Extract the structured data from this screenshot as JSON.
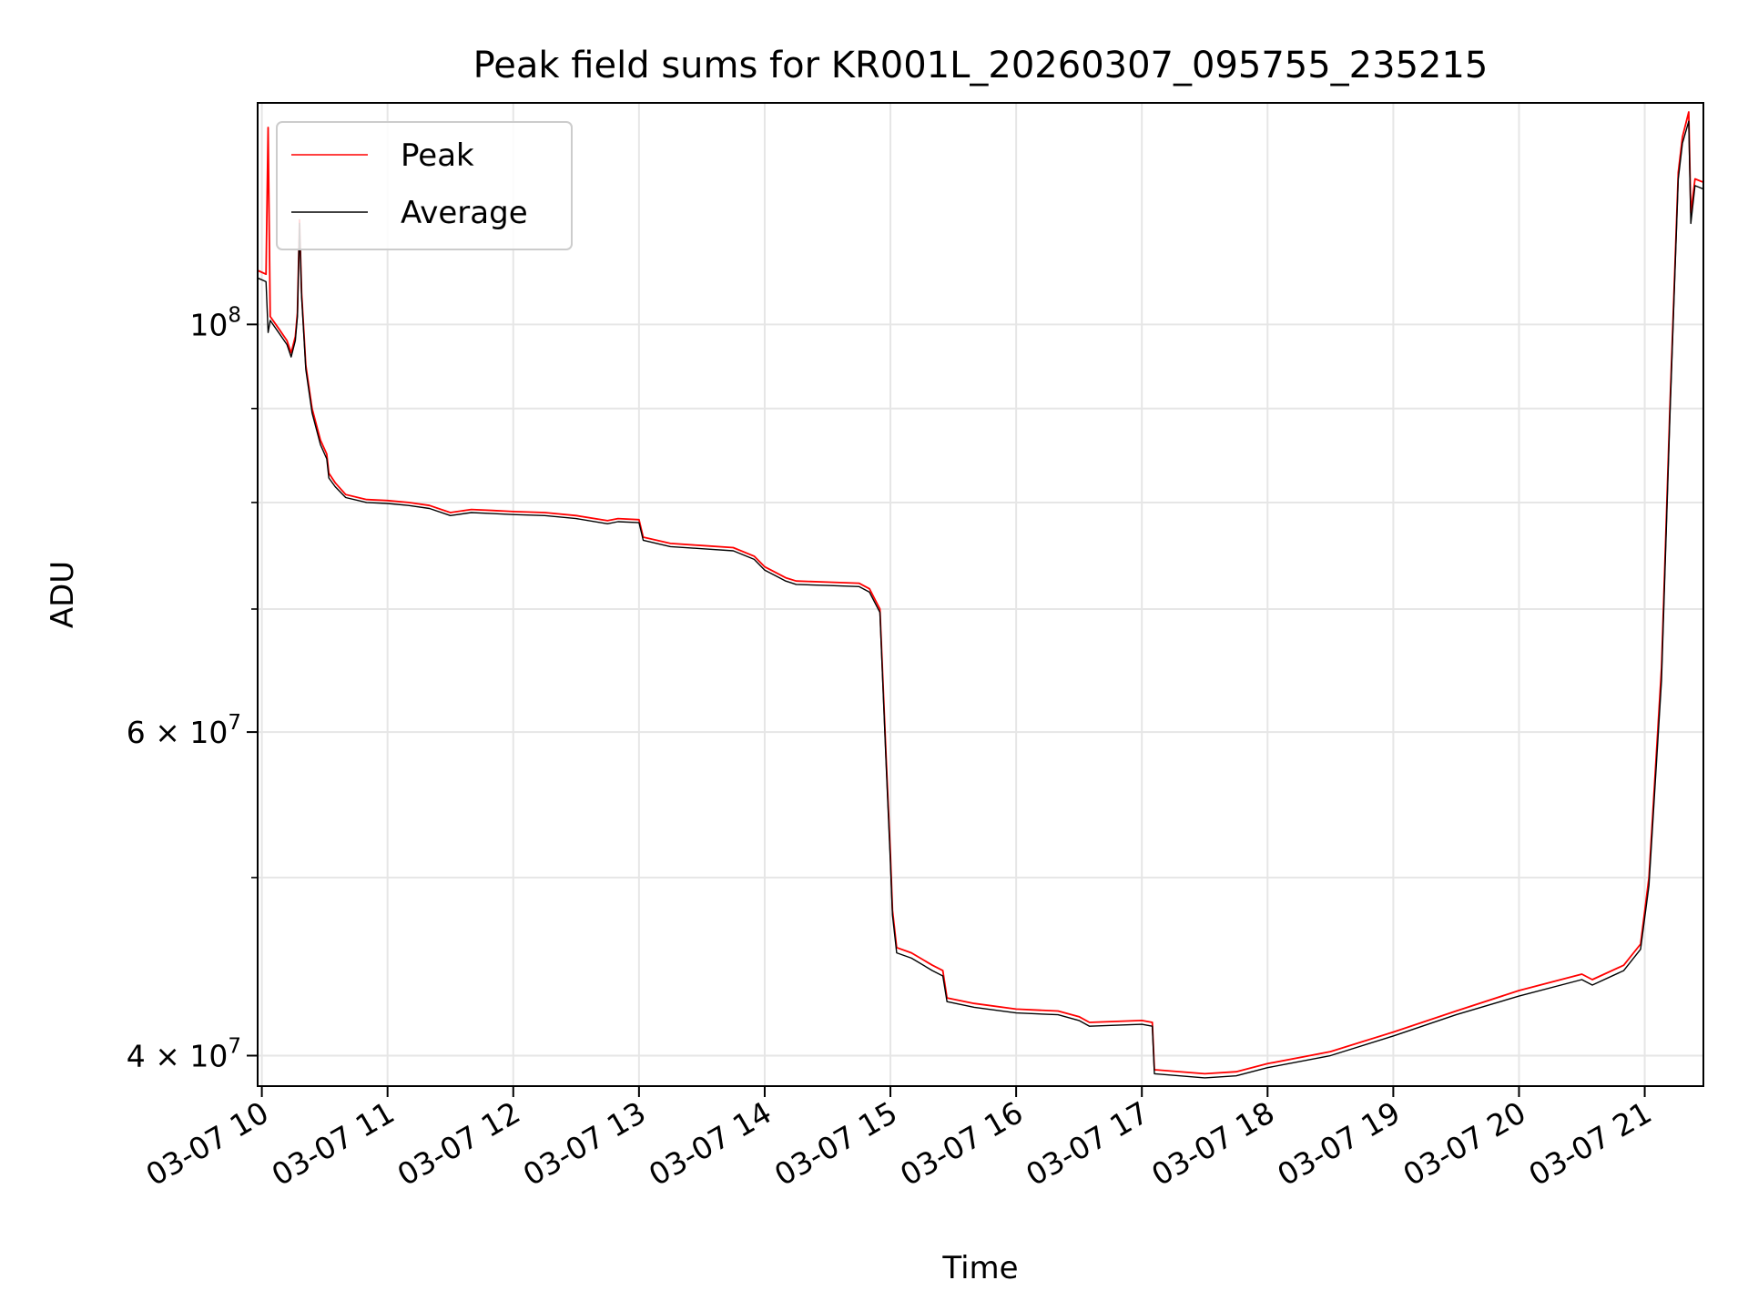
{
  "chart_data": {
    "type": "line",
    "title": "Peak field sums for KR001L_20260307_095755_235215",
    "xlabel": "Time",
    "ylabel": "ADU",
    "y_scale": "log",
    "ylim": [
      38500000,
      132000000
    ],
    "xlim": [
      "2026-03-07 09:58",
      "2026-03-07 21:28"
    ],
    "grid": true,
    "legend_position": "top-left",
    "x_ticks": [
      {
        "t": "2026-03-07 10:00",
        "label": "03-07 10"
      },
      {
        "t": "2026-03-07 11:00",
        "label": "03-07 11"
      },
      {
        "t": "2026-03-07 12:00",
        "label": "03-07 12"
      },
      {
        "t": "2026-03-07 13:00",
        "label": "03-07 13"
      },
      {
        "t": "2026-03-07 14:00",
        "label": "03-07 14"
      },
      {
        "t": "2026-03-07 15:00",
        "label": "03-07 15"
      },
      {
        "t": "2026-03-07 16:00",
        "label": "03-07 16"
      },
      {
        "t": "2026-03-07 17:00",
        "label": "03-07 17"
      },
      {
        "t": "2026-03-07 18:00",
        "label": "03-07 18"
      },
      {
        "t": "2026-03-07 19:00",
        "label": "03-07 19"
      },
      {
        "t": "2026-03-07 20:00",
        "label": "03-07 20"
      },
      {
        "t": "2026-03-07 21:00",
        "label": "03-07 21"
      }
    ],
    "y_major_ticks": [
      {
        "value": 40000000,
        "base": "4 × 10",
        "exp": "7"
      },
      {
        "value": 60000000,
        "base": "6 × 10",
        "exp": "7"
      },
      {
        "value": 100000000,
        "base": "10",
        "exp": "8"
      }
    ],
    "y_minor_ticks": [
      50000000,
      70000000,
      80000000,
      90000000
    ],
    "series": [
      {
        "name": "Peak",
        "color": "#ff0000",
        "points": [
          [
            "2026-03-07 09:58",
            107000000
          ],
          [
            "2026-03-07 10:02",
            106500000
          ],
          [
            "2026-03-07 10:03",
            128000000
          ],
          [
            "2026-03-07 10:04",
            101000000
          ],
          [
            "2026-03-07 10:08",
            99500000
          ],
          [
            "2026-03-07 10:12",
            98000000
          ],
          [
            "2026-03-07 10:14",
            96500000
          ],
          [
            "2026-03-07 10:16",
            98500000
          ],
          [
            "2026-03-07 10:17",
            101500000
          ],
          [
            "2026-03-07 10:18",
            114000000
          ],
          [
            "2026-03-07 10:19",
            104000000
          ],
          [
            "2026-03-07 10:21",
            95000000
          ],
          [
            "2026-03-07 10:24",
            90000000
          ],
          [
            "2026-03-07 10:28",
            86500000
          ],
          [
            "2026-03-07 10:31",
            85000000
          ],
          [
            "2026-03-07 10:32",
            83000000
          ],
          [
            "2026-03-07 10:35",
            82000000
          ],
          [
            "2026-03-07 10:40",
            80800000
          ],
          [
            "2026-03-07 10:50",
            80300000
          ],
          [
            "2026-03-07 11:00",
            80200000
          ],
          [
            "2026-03-07 11:10",
            80000000
          ],
          [
            "2026-03-07 11:20",
            79700000
          ],
          [
            "2026-03-07 11:30",
            79000000
          ],
          [
            "2026-03-07 11:40",
            79300000
          ],
          [
            "2026-03-07 11:50",
            79200000
          ],
          [
            "2026-03-07 12:00",
            79100000
          ],
          [
            "2026-03-07 12:15",
            79000000
          ],
          [
            "2026-03-07 12:30",
            78700000
          ],
          [
            "2026-03-07 12:45",
            78200000
          ],
          [
            "2026-03-07 12:50",
            78400000
          ],
          [
            "2026-03-07 13:00",
            78300000
          ],
          [
            "2026-03-07 13:02",
            76600000
          ],
          [
            "2026-03-07 13:15",
            76000000
          ],
          [
            "2026-03-07 13:30",
            75800000
          ],
          [
            "2026-03-07 13:45",
            75600000
          ],
          [
            "2026-03-07 13:55",
            74800000
          ],
          [
            "2026-03-07 14:00",
            73800000
          ],
          [
            "2026-03-07 14:10",
            72800000
          ],
          [
            "2026-03-07 14:15",
            72500000
          ],
          [
            "2026-03-07 14:30",
            72400000
          ],
          [
            "2026-03-07 14:45",
            72300000
          ],
          [
            "2026-03-07 14:50",
            71800000
          ],
          [
            "2026-03-07 14:55",
            70000000
          ],
          [
            "2026-03-07 14:58",
            58000000
          ],
          [
            "2026-03-07 15:00",
            51500000
          ],
          [
            "2026-03-07 15:01",
            48000000
          ],
          [
            "2026-03-07 15:03",
            45800000
          ],
          [
            "2026-03-07 15:10",
            45500000
          ],
          [
            "2026-03-07 15:20",
            44800000
          ],
          [
            "2026-03-07 15:25",
            44500000
          ],
          [
            "2026-03-07 15:27",
            43000000
          ],
          [
            "2026-03-07 15:40",
            42700000
          ],
          [
            "2026-03-07 16:00",
            42400000
          ],
          [
            "2026-03-07 16:20",
            42300000
          ],
          [
            "2026-03-07 16:30",
            42000000
          ],
          [
            "2026-03-07 16:35",
            41700000
          ],
          [
            "2026-03-07 17:00",
            41800000
          ],
          [
            "2026-03-07 17:05",
            41700000
          ],
          [
            "2026-03-07 17:06",
            39300000
          ],
          [
            "2026-03-07 17:30",
            39100000
          ],
          [
            "2026-03-07 17:45",
            39200000
          ],
          [
            "2026-03-07 18:00",
            39600000
          ],
          [
            "2026-03-07 18:30",
            40200000
          ],
          [
            "2026-03-07 19:00",
            41200000
          ],
          [
            "2026-03-07 19:30",
            42300000
          ],
          [
            "2026-03-07 20:00",
            43400000
          ],
          [
            "2026-03-07 20:30",
            44300000
          ],
          [
            "2026-03-07 20:35",
            44000000
          ],
          [
            "2026-03-07 20:50",
            44800000
          ],
          [
            "2026-03-07 20:58",
            46000000
          ],
          [
            "2026-03-07 21:02",
            50000000
          ],
          [
            "2026-03-07 21:08",
            65000000
          ],
          [
            "2026-03-07 21:12",
            90000000
          ],
          [
            "2026-03-07 21:16",
            121000000
          ],
          [
            "2026-03-07 21:18",
            126500000
          ],
          [
            "2026-03-07 21:21",
            130500000
          ],
          [
            "2026-03-07 21:22",
            115000000
          ],
          [
            "2026-03-07 21:24",
            120000000
          ],
          [
            "2026-03-07 21:28",
            119500000
          ]
        ]
      },
      {
        "name": "Average",
        "color": "#000000",
        "points": [
          [
            "2026-03-07 09:58",
            106000000
          ],
          [
            "2026-03-07 10:02",
            105500000
          ],
          [
            "2026-03-07 10:03",
            99000000
          ],
          [
            "2026-03-07 10:04",
            100500000
          ],
          [
            "2026-03-07 10:08",
            99000000
          ],
          [
            "2026-03-07 10:12",
            97500000
          ],
          [
            "2026-03-07 10:14",
            96000000
          ],
          [
            "2026-03-07 10:16",
            98000000
          ],
          [
            "2026-03-07 10:17",
            101000000
          ],
          [
            "2026-03-07 10:18",
            113500000
          ],
          [
            "2026-03-07 10:19",
            103500000
          ],
          [
            "2026-03-07 10:21",
            94500000
          ],
          [
            "2026-03-07 10:24",
            89500000
          ],
          [
            "2026-03-07 10:28",
            86000000
          ],
          [
            "2026-03-07 10:31",
            84500000
          ],
          [
            "2026-03-07 10:32",
            82500000
          ],
          [
            "2026-03-07 10:35",
            81600000
          ],
          [
            "2026-03-07 10:40",
            80500000
          ],
          [
            "2026-03-07 10:50",
            80000000
          ],
          [
            "2026-03-07 11:00",
            79900000
          ],
          [
            "2026-03-07 11:10",
            79700000
          ],
          [
            "2026-03-07 11:20",
            79400000
          ],
          [
            "2026-03-07 11:30",
            78700000
          ],
          [
            "2026-03-07 11:40",
            79000000
          ],
          [
            "2026-03-07 11:50",
            78900000
          ],
          [
            "2026-03-07 12:00",
            78800000
          ],
          [
            "2026-03-07 12:15",
            78700000
          ],
          [
            "2026-03-07 12:30",
            78400000
          ],
          [
            "2026-03-07 12:45",
            77900000
          ],
          [
            "2026-03-07 12:50",
            78100000
          ],
          [
            "2026-03-07 13:00",
            78000000
          ],
          [
            "2026-03-07 13:02",
            76300000
          ],
          [
            "2026-03-07 13:15",
            75700000
          ],
          [
            "2026-03-07 13:30",
            75500000
          ],
          [
            "2026-03-07 13:45",
            75300000
          ],
          [
            "2026-03-07 13:55",
            74500000
          ],
          [
            "2026-03-07 14:00",
            73500000
          ],
          [
            "2026-03-07 14:10",
            72500000
          ],
          [
            "2026-03-07 14:15",
            72200000
          ],
          [
            "2026-03-07 14:30",
            72100000
          ],
          [
            "2026-03-07 14:45",
            72000000
          ],
          [
            "2026-03-07 14:50",
            71500000
          ],
          [
            "2026-03-07 14:55",
            69700000
          ],
          [
            "2026-03-07 14:58",
            57500000
          ],
          [
            "2026-03-07 15:00",
            51000000
          ],
          [
            "2026-03-07 15:01",
            47700000
          ],
          [
            "2026-03-07 15:03",
            45500000
          ],
          [
            "2026-03-07 15:10",
            45200000
          ],
          [
            "2026-03-07 15:20",
            44500000
          ],
          [
            "2026-03-07 15:25",
            44200000
          ],
          [
            "2026-03-07 15:27",
            42800000
          ],
          [
            "2026-03-07 15:40",
            42500000
          ],
          [
            "2026-03-07 16:00",
            42200000
          ],
          [
            "2026-03-07 16:20",
            42100000
          ],
          [
            "2026-03-07 16:30",
            41800000
          ],
          [
            "2026-03-07 16:35",
            41500000
          ],
          [
            "2026-03-07 17:00",
            41600000
          ],
          [
            "2026-03-07 17:05",
            41500000
          ],
          [
            "2026-03-07 17:06",
            39100000
          ],
          [
            "2026-03-07 17:30",
            38900000
          ],
          [
            "2026-03-07 17:45",
            39000000
          ],
          [
            "2026-03-07 18:00",
            39400000
          ],
          [
            "2026-03-07 18:30",
            40000000
          ],
          [
            "2026-03-07 19:00",
            41000000
          ],
          [
            "2026-03-07 19:30",
            42100000
          ],
          [
            "2026-03-07 20:00",
            43100000
          ],
          [
            "2026-03-07 20:30",
            44000000
          ],
          [
            "2026-03-07 20:35",
            43700000
          ],
          [
            "2026-03-07 20:50",
            44500000
          ],
          [
            "2026-03-07 20:58",
            45700000
          ],
          [
            "2026-03-07 21:02",
            49500000
          ],
          [
            "2026-03-07 21:08",
            64000000
          ],
          [
            "2026-03-07 21:12",
            89000000
          ],
          [
            "2026-03-07 21:16",
            120000000
          ],
          [
            "2026-03-07 21:18",
            125500000
          ],
          [
            "2026-03-07 21:21",
            129000000
          ],
          [
            "2026-03-07 21:22",
            113500000
          ],
          [
            "2026-03-07 21:24",
            119000000
          ],
          [
            "2026-03-07 21:28",
            118500000
          ]
        ]
      }
    ]
  }
}
